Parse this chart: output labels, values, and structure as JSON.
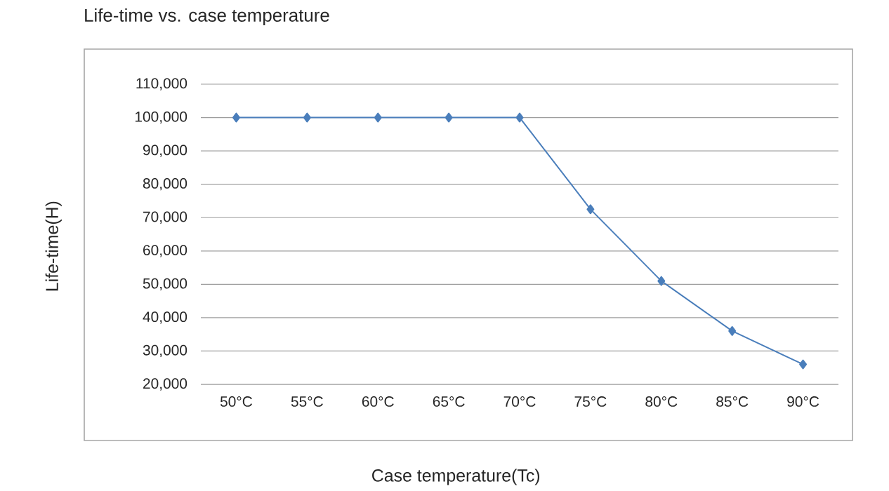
{
  "chart_data": {
    "type": "line",
    "title": "Life-time vs. case temperature",
    "xlabel": "Case temperature(Tc)",
    "ylabel": "Life-time(H)",
    "categories": [
      "50°C",
      "55°C",
      "60°C",
      "65°C",
      "70°C",
      "75°C",
      "80°C",
      "85°C",
      "90°C"
    ],
    "series": [
      {
        "color": "#4a7ebb",
        "values": [
          100000,
          100000,
          100000,
          100000,
          100000,
          72500,
          51000,
          36000,
          26000
        ]
      }
    ],
    "ylim": [
      20000,
      110000
    ],
    "yticks": [
      {
        "value": 20000,
        "label": "20,000"
      },
      {
        "value": 30000,
        "label": "30,000"
      },
      {
        "value": 40000,
        "label": "40,000"
      },
      {
        "value": 50000,
        "label": "50,000"
      },
      {
        "value": 60000,
        "label": "60,000"
      },
      {
        "value": 70000,
        "label": "70,000"
      },
      {
        "value": 80000,
        "label": "80,000"
      },
      {
        "value": 90000,
        "label": "90,000"
      },
      {
        "value": 100000,
        "label": "100,000"
      },
      {
        "value": 110000,
        "label": "110,000"
      }
    ],
    "grid": "y",
    "marker": "diamond",
    "line_style": "solid"
  }
}
